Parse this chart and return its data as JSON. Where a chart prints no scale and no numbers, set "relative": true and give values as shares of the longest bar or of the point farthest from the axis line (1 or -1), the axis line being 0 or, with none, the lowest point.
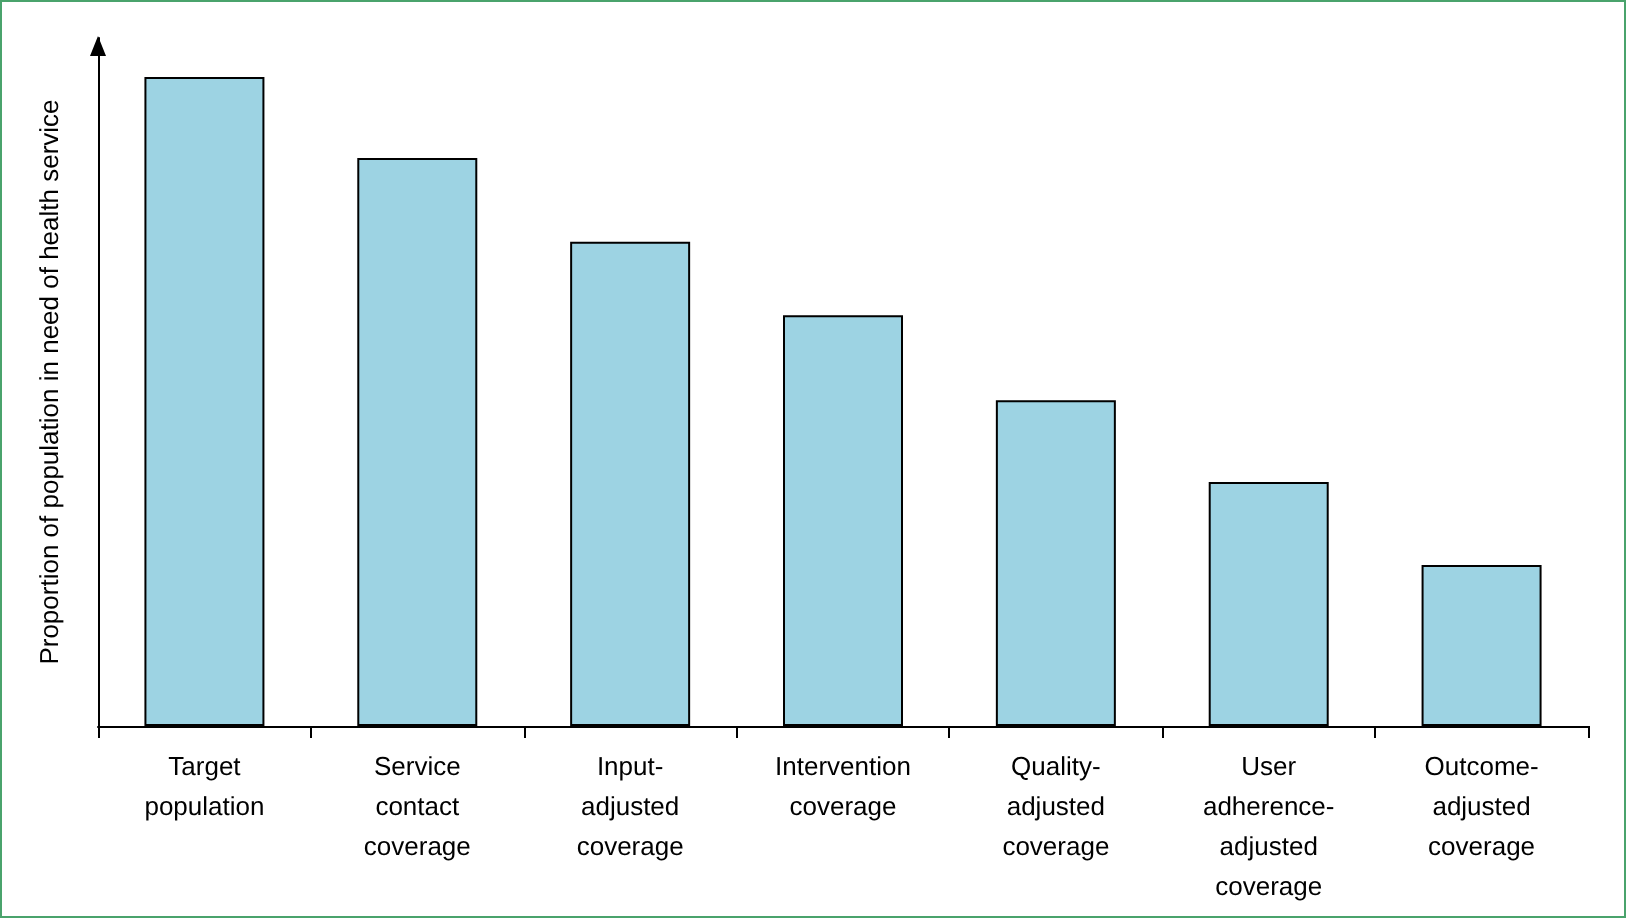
{
  "chart_data": {
    "type": "bar",
    "ylabel": "Proportion of population in need of health service",
    "categories": [
      "Target population",
      "Service contact coverage",
      "Input-adjusted coverage",
      "Intervention coverage",
      "Quality-adjusted coverage",
      "User adherence-adjusted coverage",
      "Outcome-adjusted coverage"
    ],
    "values": [
      1,
      0.875,
      0.746,
      0.633,
      0.502,
      0.376,
      0.248
    ],
    "color": "#9dd3e3",
    "relative": true,
    "grid": false
  }
}
